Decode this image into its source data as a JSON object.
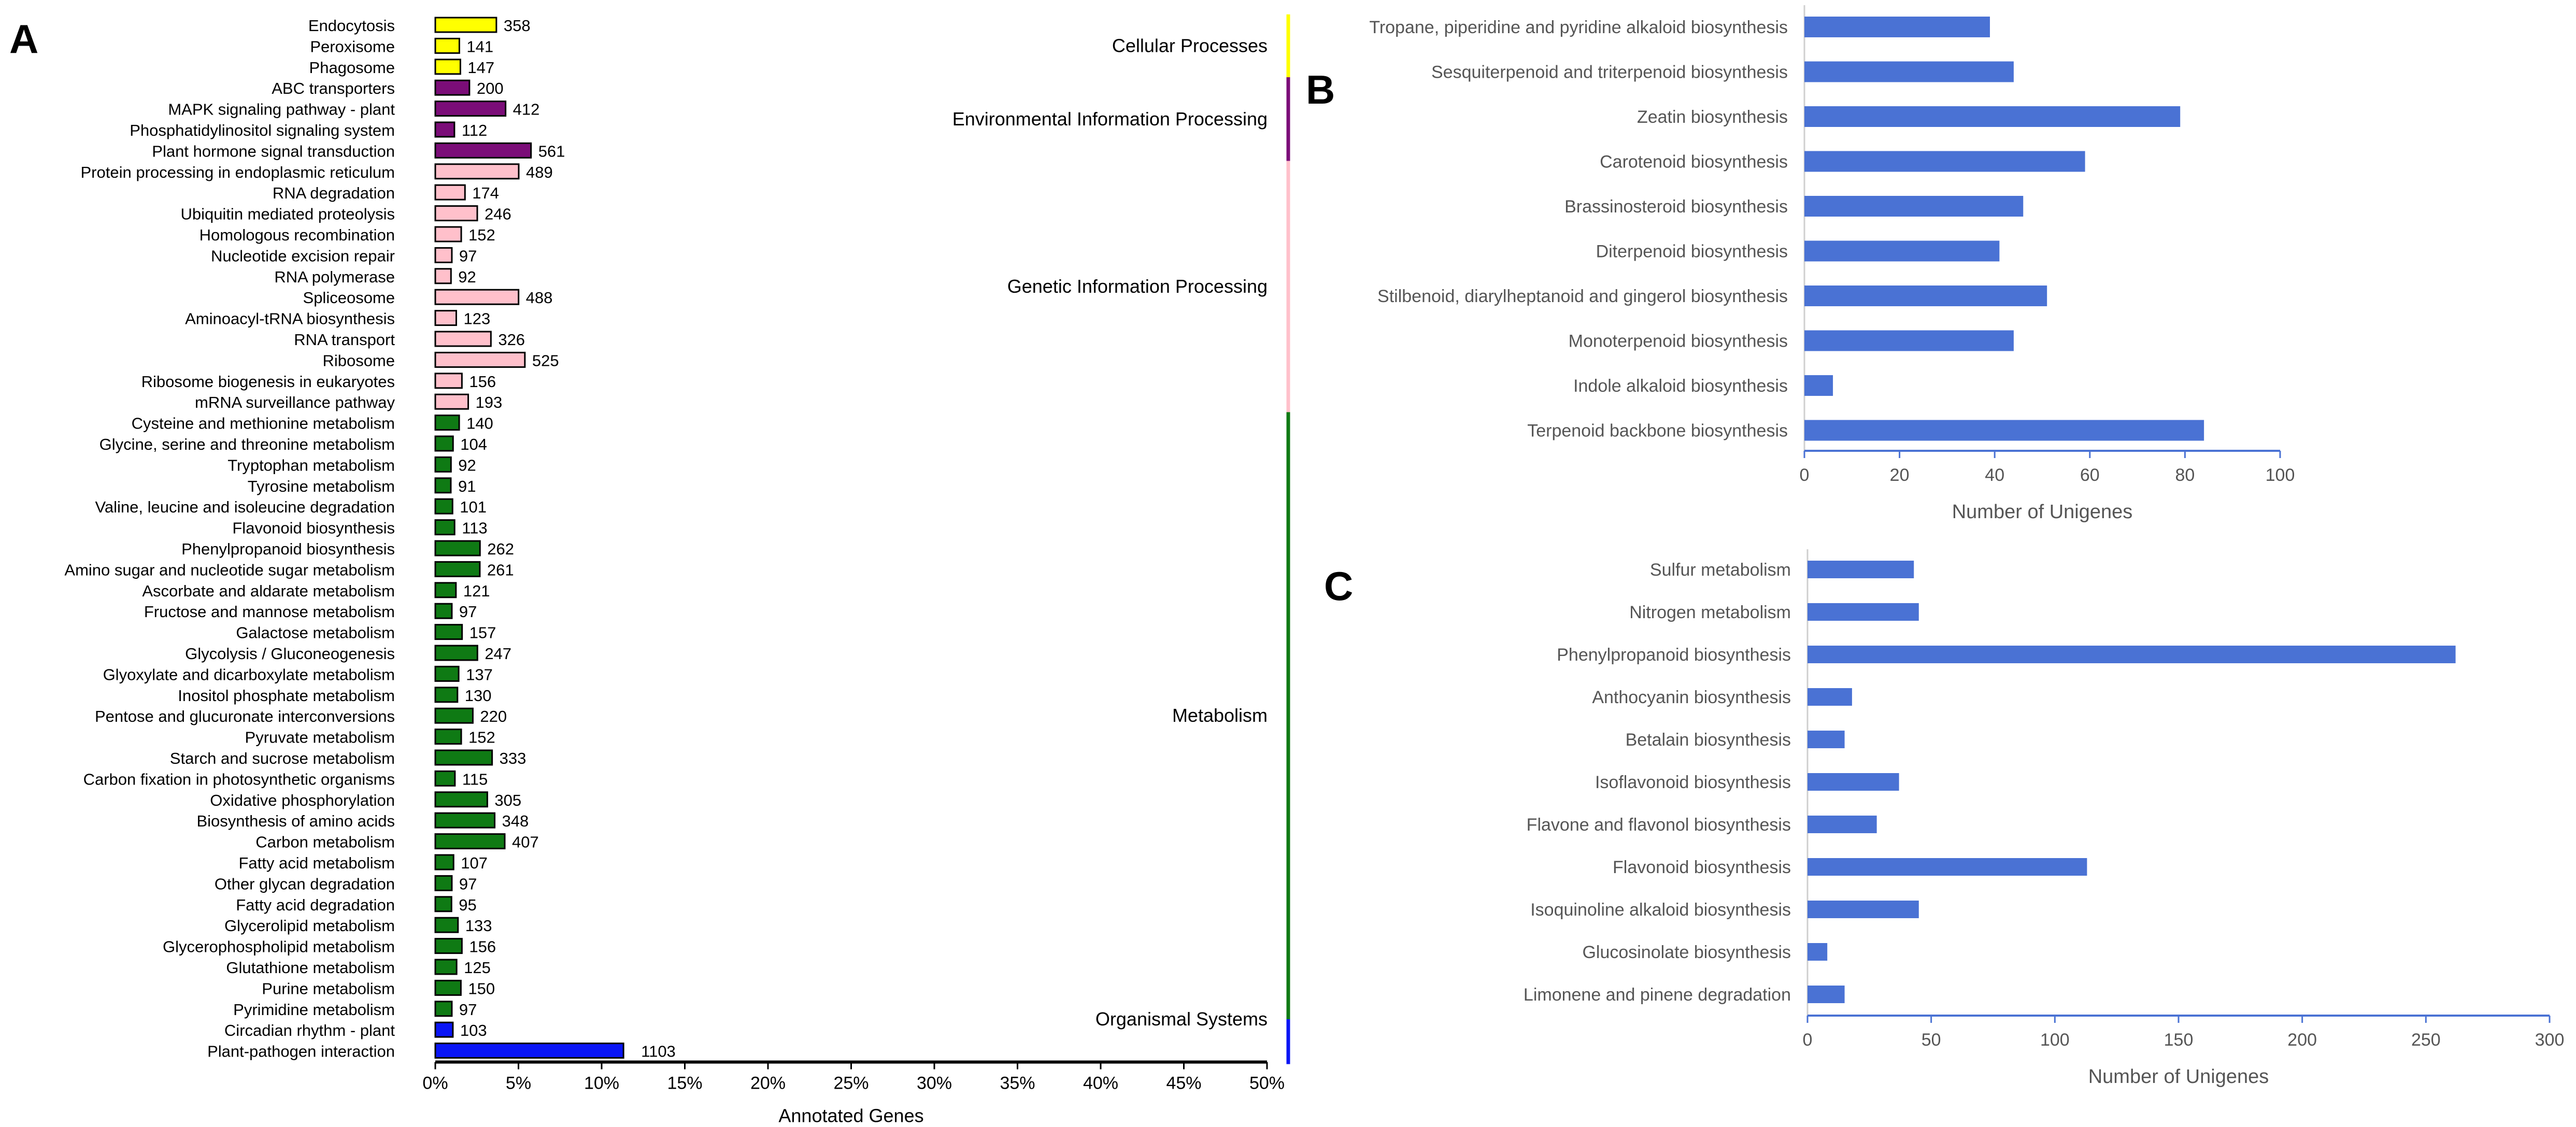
{
  "panel_labels": {
    "a": "A",
    "b": "B",
    "c": "C"
  },
  "colors": {
    "cellular": "#ffff00",
    "environmental": "#7b0d78",
    "genetic": "#ffc0cb",
    "metabolism": "#0f7a14",
    "organismal": "#0a15f5",
    "bar_blue": "#4a72d4",
    "axis_grey": "#8c8c8c"
  },
  "chart_data": [
    {
      "id": "A",
      "type": "bar",
      "orientation": "horizontal",
      "xlabel": "Annotated Genes",
      "xlim_percent": [
        0,
        50
      ],
      "xticks": [
        "0%",
        "5%",
        "10%",
        "15%",
        "20%",
        "25%",
        "30%",
        "35%",
        "40%",
        "45%",
        "50%"
      ],
      "total_genes_for_percent": 9750,
      "groups": [
        {
          "name": "Cellular Processes",
          "color_key": "cellular",
          "start": 0,
          "end": 2
        },
        {
          "name": "Environmental Information Processing",
          "color_key": "environmental",
          "start": 3,
          "end": 6
        },
        {
          "name": "Genetic Information Processing",
          "color_key": "genetic",
          "start": 7,
          "end": 18
        },
        {
          "name": "Metabolism",
          "color_key": "metabolism",
          "start": 19,
          "end": 47
        },
        {
          "name": "Organismal Systems",
          "color_key": "organismal",
          "start": 48,
          "end": 49
        }
      ],
      "categories": [
        "Endocytosis",
        "Peroxisome",
        "Phagosome",
        "ABC transporters",
        "MAPK signaling pathway - plant",
        "Phosphatidylinositol signaling system",
        "Plant hormone signal transduction",
        "Protein processing in endoplasmic reticulum",
        "RNA degradation",
        "Ubiquitin mediated proteolysis",
        "Homologous recombination",
        "Nucleotide excision repair",
        "RNA polymerase",
        "Spliceosome",
        "Aminoacyl-tRNA biosynthesis",
        "RNA transport",
        "Ribosome",
        "Ribosome biogenesis in eukaryotes",
        "mRNA surveillance pathway",
        "Cysteine and methionine metabolism",
        "Glycine, serine and threonine metabolism",
        "Tryptophan metabolism",
        "Tyrosine metabolism",
        "Valine, leucine and isoleucine degradation",
        "Flavonoid biosynthesis",
        "Phenylpropanoid biosynthesis",
        "Amino sugar and nucleotide sugar metabolism",
        "Ascorbate and aldarate metabolism",
        "Fructose and mannose metabolism",
        "Galactose metabolism",
        "Glycolysis / Gluconeogenesis",
        "Glyoxylate and dicarboxylate metabolism",
        "Inositol phosphate metabolism",
        "Pentose and glucuronate interconversions",
        "Pyruvate metabolism",
        "Starch and sucrose metabolism",
        "Carbon fixation in photosynthetic organisms",
        "Oxidative phosphorylation",
        "Biosynthesis of amino acids",
        "Carbon metabolism",
        "Fatty acid metabolism",
        "Other glycan degradation",
        "Fatty acid degradation",
        "Glycerolipid metabolism",
        "Glycerophospholipid metabolism",
        "Glutathione metabolism",
        "Purine metabolism",
        "Pyrimidine metabolism",
        "Circadian rhythm - plant",
        "Plant-pathogen interaction"
      ],
      "values": [
        358,
        141,
        147,
        200,
        412,
        112,
        561,
        489,
        174,
        246,
        152,
        97,
        92,
        488,
        123,
        326,
        525,
        156,
        193,
        140,
        104,
        92,
        91,
        101,
        113,
        262,
        261,
        121,
        97,
        157,
        247,
        137,
        130,
        220,
        152,
        333,
        115,
        305,
        348,
        407,
        107,
        97,
        95,
        133,
        156,
        125,
        150,
        97,
        103,
        1103
      ],
      "labels": [
        "358",
        "141",
        "147",
        "200",
        "412",
        "112",
        "561",
        "489",
        "174",
        "246",
        "152",
        "97",
        "92",
        "488",
        "123",
        "326",
        "525",
        "156",
        "193",
        "140",
        "104",
        "92",
        "91",
        "101",
        "113",
        "262",
        "261",
        "121",
        "97",
        "157",
        "247",
        "137",
        "130",
        "220",
        "152",
        "333",
        "115",
        "305",
        "348",
        "407",
        "107",
        "97",
        "95",
        "133",
        "156",
        "125",
        "150",
        "97",
        "103",
        "1103"
      ]
    },
    {
      "id": "B",
      "type": "bar",
      "orientation": "horizontal",
      "xlabel": "Number of Unigenes",
      "xlim": [
        0,
        100
      ],
      "xticks": [
        "0",
        "20",
        "40",
        "60",
        "80",
        "100"
      ],
      "categories": [
        "Tropane, piperidine and pyridine alkaloid biosynthesis",
        "Sesquiterpenoid and triterpenoid biosynthesis",
        "Zeatin biosynthesis",
        "Carotenoid biosynthesis",
        "Brassinosteroid biosynthesis",
        "Diterpenoid biosynthesis",
        "Stilbenoid, diarylheptanoid and gingerol biosynthesis",
        "Monoterpenoid biosynthesis",
        "Indole alkaloid biosynthesis",
        "Terpenoid backbone biosynthesis"
      ],
      "values": [
        39,
        44,
        79,
        59,
        46,
        41,
        51,
        44,
        6,
        84
      ]
    },
    {
      "id": "C",
      "type": "bar",
      "orientation": "horizontal",
      "xlabel": "Number of Unigenes",
      "xlim": [
        0,
        300
      ],
      "xticks": [
        "0",
        "50",
        "100",
        "150",
        "200",
        "250",
        "300"
      ],
      "categories": [
        "Sulfur metabolism",
        "Nitrogen metabolism",
        "Phenylpropanoid biosynthesis",
        "Anthocyanin biosynthesis",
        "Betalain biosynthesis",
        "Isoflavonoid biosynthesis",
        "Flavone and flavonol biosynthesis",
        "Flavonoid biosynthesis",
        "Isoquinoline alkaloid biosynthesis",
        "Glucosinolate biosynthesis",
        "Limonene and pinene degradation"
      ],
      "values": [
        43,
        45,
        262,
        18,
        15,
        37,
        28,
        113,
        45,
        8,
        15
      ]
    }
  ]
}
